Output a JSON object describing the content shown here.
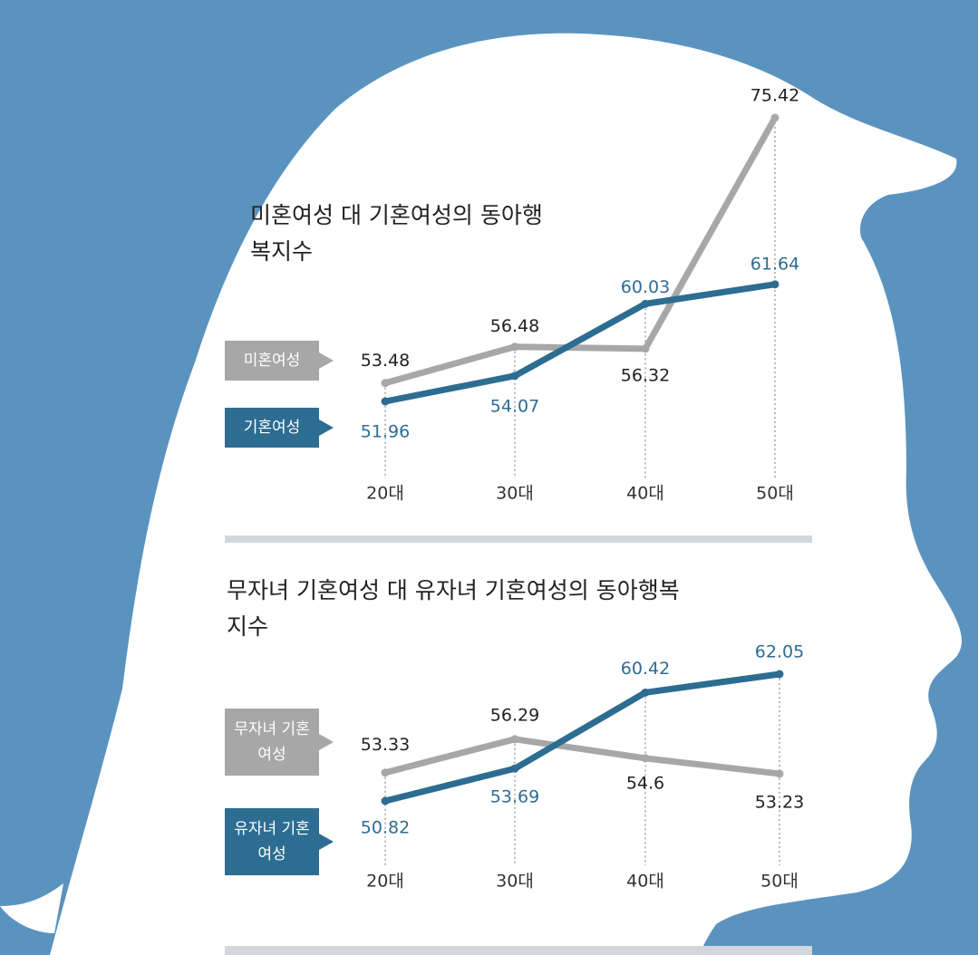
{
  "chart_data": [
    {
      "type": "line",
      "title": "미혼여성 대 기혼여성의 동아행복지수",
      "categories": [
        "20대",
        "30대",
        "40대",
        "50대"
      ],
      "series": [
        {
          "name": "미혼여성",
          "color": "#a7a7a7",
          "values": [
            53.48,
            56.48,
            56.32,
            75.42
          ]
        },
        {
          "name": "기혼여성",
          "color": "#2d6d92",
          "values": [
            51.96,
            54.07,
            60.03,
            61.64
          ]
        }
      ]
    },
    {
      "type": "line",
      "title": "무자녀 기혼여성 대 유자녀 기혼여성의 동아행복지수",
      "categories": [
        "20대",
        "30대",
        "40대",
        "50대"
      ],
      "series": [
        {
          "name": "무자녀 기혼여성",
          "color": "#a7a7a7",
          "values": [
            53.33,
            56.29,
            54.6,
            53.23
          ]
        },
        {
          "name": "유자녀 기혼여성",
          "color": "#2d6d92",
          "values": [
            50.82,
            53.69,
            60.42,
            62.05
          ]
        }
      ]
    }
  ]
}
